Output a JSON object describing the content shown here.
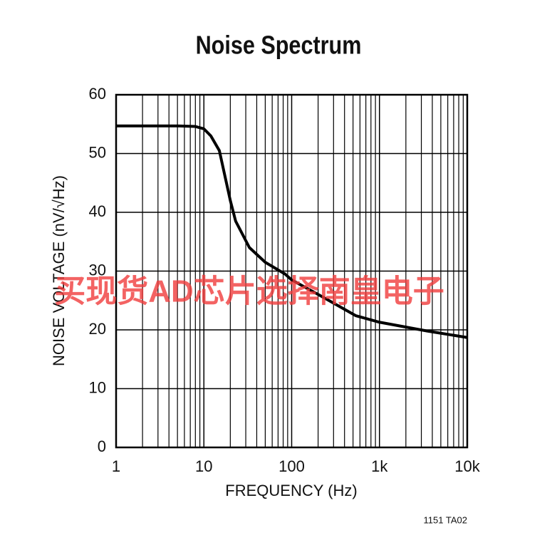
{
  "chart_data": {
    "type": "line",
    "title": "Noise Spectrum",
    "xlabel": "FREQUENCY (Hz)",
    "ylabel": "NOISE VOLTAGE (nV/√Hz)",
    "note": "1151 TA02",
    "watermark": "买现货AD芯片选择南皇电子",
    "xscale": "log",
    "grid": true,
    "minor_grid": true,
    "xlim": [
      1,
      10000
    ],
    "ylim": [
      0,
      60
    ],
    "xticks": [
      1,
      10,
      100,
      {
        "value": 1000,
        "label": "1k"
      },
      {
        "value": 10000,
        "label": "10k"
      }
    ],
    "yticks": [
      0,
      10,
      20,
      30,
      40,
      50,
      60
    ],
    "x": [
      1,
      5,
      8,
      10,
      12,
      15,
      20,
      23,
      33,
      50,
      84,
      100,
      213,
      540,
      1000,
      3500,
      10000
    ],
    "series": [
      {
        "color": "#000000",
        "values": [
          54.7,
          54.7,
          54.6,
          54.2,
          53,
          50.5,
          42,
          38.5,
          34,
          31.5,
          29.5,
          28.5,
          25.8,
          22.4,
          21.3,
          19.8,
          18.7
        ]
      }
    ]
  }
}
